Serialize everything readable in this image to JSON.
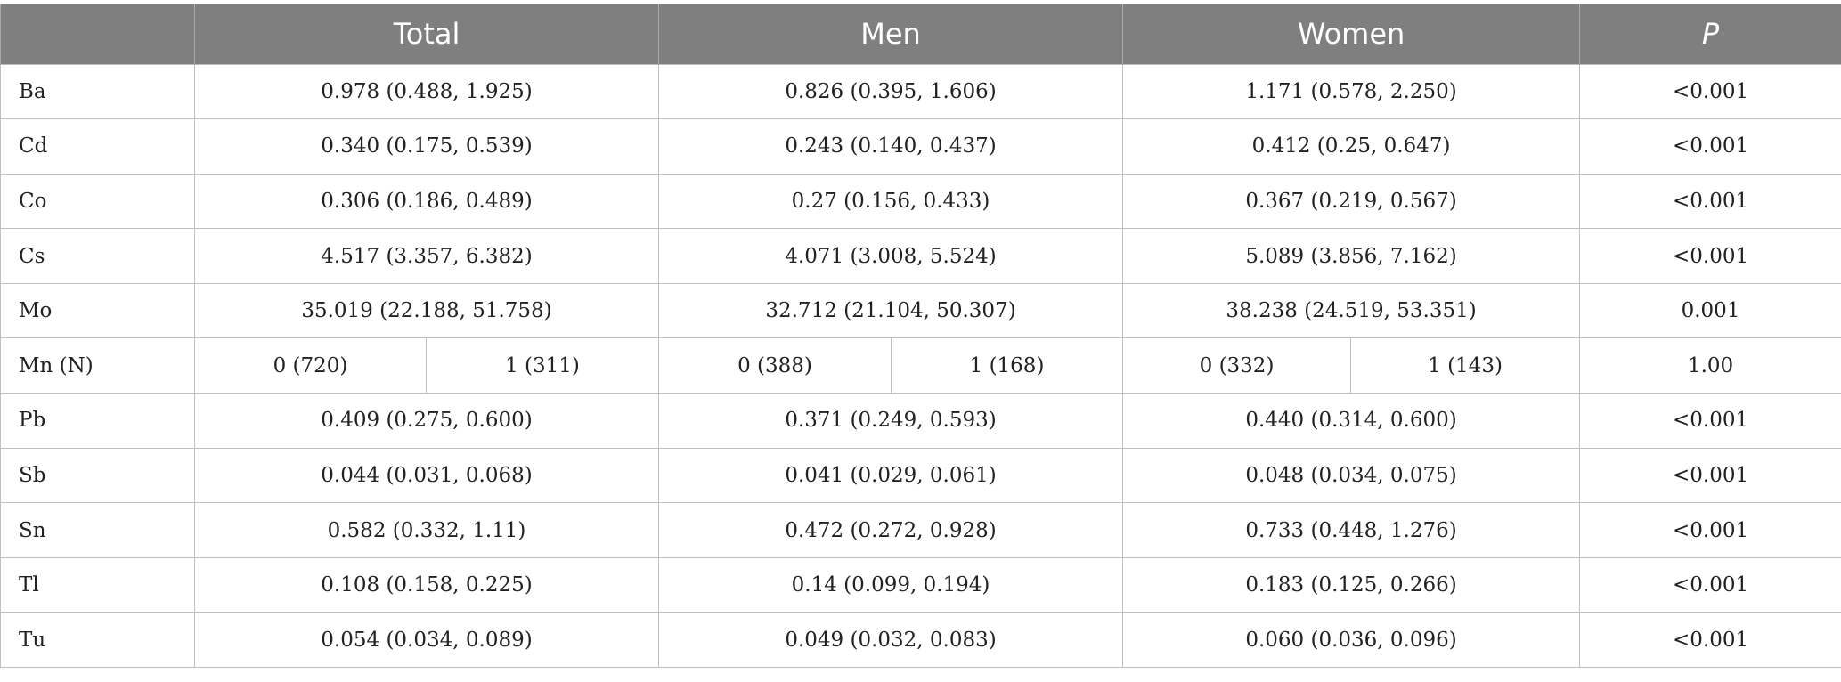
{
  "headers": {
    "label": "",
    "total": "Total",
    "men": "Men",
    "women": "Women",
    "p": "P"
  },
  "rows": [
    {
      "label": "Ba",
      "total": "0.978 (0.488, 1.925)",
      "men": "0.826 (0.395, 1.606)",
      "women": "1.171 (0.578, 2.250)",
      "p": "<0.001"
    },
    {
      "label": "Cd",
      "total": "0.340 (0.175, 0.539)",
      "men": "0.243 (0.140, 0.437)",
      "women": "0.412 (0.25, 0.647)",
      "p": "<0.001"
    },
    {
      "label": "Co",
      "total": "0.306 (0.186, 0.489)",
      "men": "0.27 (0.156, 0.433)",
      "women": "0.367 (0.219, 0.567)",
      "p": "<0.001"
    },
    {
      "label": "Cs",
      "total": "4.517 (3.357, 6.382)",
      "men": "4.071 (3.008, 5.524)",
      "women": "5.089 (3.856, 7.162)",
      "p": "<0.001"
    },
    {
      "label": "Mo",
      "total": "35.019 (22.188, 51.758)",
      "men": "32.712 (21.104, 50.307)",
      "women": "38.238 (24.519, 53.351)",
      "p": "0.001"
    },
    {
      "label": "Mn (N)",
      "total_a": "0 (720)",
      "total_b": "1 (311)",
      "men_a": "0 (388)",
      "men_b": "1 (168)",
      "women_a": "0 (332)",
      "women_b": "1 (143)",
      "p": "1.00"
    },
    {
      "label": "Pb",
      "total": "0.409 (0.275, 0.600)",
      "men": "0.371 (0.249, 0.593)",
      "women": "0.440 (0.314, 0.600)",
      "p": "<0.001"
    },
    {
      "label": "Sb",
      "total": "0.044 (0.031, 0.068)",
      "men": "0.041 (0.029, 0.061)",
      "women": "0.048 (0.034, 0.075)",
      "p": "<0.001"
    },
    {
      "label": "Sn",
      "total": "0.582 (0.332, 1.11)",
      "men": "0.472 (0.272, 0.928)",
      "women": "0.733 (0.448, 1.276)",
      "p": "<0.001"
    },
    {
      "label": "Tl",
      "total": "0.108 (0.158, 0.225)",
      "men": "0.14 (0.099, 0.194)",
      "women": "0.183 (0.125, 0.266)",
      "p": "<0.001"
    },
    {
      "label": "Tu",
      "total": "0.054 (0.034, 0.089)",
      "men": "0.049 (0.032, 0.083)",
      "women": "0.060 (0.036, 0.096)",
      "p": "<0.001"
    }
  ]
}
